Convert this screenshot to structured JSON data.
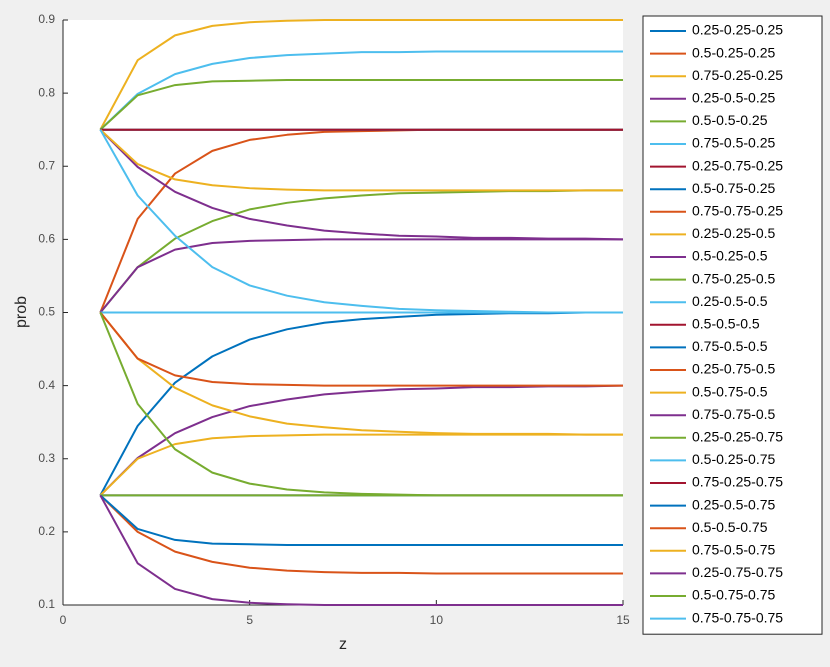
{
  "chart_data": {
    "type": "line",
    "xlabel": "z",
    "ylabel": "prob",
    "x": [
      1,
      2,
      3,
      4,
      5,
      6,
      7,
      8,
      9,
      10,
      11,
      12,
      13,
      14,
      15
    ],
    "xlim": [
      0,
      15
    ],
    "xticks": [
      0,
      5,
      10,
      15
    ],
    "ylim": [
      0.1,
      0.9
    ],
    "yticks": [
      0.1,
      0.2,
      0.3,
      0.4,
      0.5,
      0.6,
      0.7,
      0.8,
      0.9
    ],
    "grid": false,
    "legend": "outside-right",
    "series": [
      {
        "name": "0.25-0.25-0.25",
        "color": "#0072BD",
        "values": [
          0.25,
          0.345,
          0.404,
          0.44,
          0.463,
          0.477,
          0.486,
          0.491,
          0.494,
          0.497,
          0.498,
          0.499,
          0.499,
          0.5,
          0.5
        ]
      },
      {
        "name": "0.5-0.25-0.25",
        "color": "#D95319",
        "values": [
          0.5,
          0.628,
          0.69,
          0.721,
          0.736,
          0.743,
          0.747,
          0.748,
          0.749,
          0.75,
          0.75,
          0.75,
          0.75,
          0.75,
          0.75
        ]
      },
      {
        "name": "0.75-0.25-0.25",
        "color": "#EDB120",
        "values": [
          0.75,
          0.845,
          0.879,
          0.892,
          0.897,
          0.899,
          0.9,
          0.9,
          0.9,
          0.9,
          0.9,
          0.9,
          0.9,
          0.9,
          0.9
        ]
      },
      {
        "name": "0.25-0.5-0.25",
        "color": "#7E2F8E",
        "values": [
          0.25,
          0.301,
          0.335,
          0.357,
          0.372,
          0.381,
          0.388,
          0.392,
          0.395,
          0.396,
          0.398,
          0.398,
          0.399,
          0.399,
          0.4
        ]
      },
      {
        "name": "0.5-0.5-0.25",
        "color": "#77AC30",
        "values": [
          0.5,
          0.562,
          0.601,
          0.625,
          0.641,
          0.65,
          0.656,
          0.66,
          0.663,
          0.664,
          0.665,
          0.666,
          0.666,
          0.667,
          0.667
        ]
      },
      {
        "name": "0.75-0.5-0.25",
        "color": "#4DBEEE",
        "values": [
          0.75,
          0.799,
          0.826,
          0.84,
          0.848,
          0.852,
          0.854,
          0.856,
          0.856,
          0.857,
          0.857,
          0.857,
          0.857,
          0.857,
          0.857
        ]
      },
      {
        "name": "0.25-0.75-0.25",
        "color": "#A2142F",
        "values": [
          0.25,
          0.25,
          0.25,
          0.25,
          0.25,
          0.25,
          0.25,
          0.25,
          0.25,
          0.25,
          0.25,
          0.25,
          0.25,
          0.25,
          0.25
        ]
      },
      {
        "name": "0.5-0.75-0.25",
        "color": "#0072BD",
        "values": [
          0.5,
          0.5,
          0.5,
          0.5,
          0.5,
          0.5,
          0.5,
          0.5,
          0.5,
          0.5,
          0.5,
          0.5,
          0.5,
          0.5,
          0.5
        ]
      },
      {
        "name": "0.75-0.75-0.25",
        "color": "#D95319",
        "values": [
          0.75,
          0.75,
          0.75,
          0.75,
          0.75,
          0.75,
          0.75,
          0.75,
          0.75,
          0.75,
          0.75,
          0.75,
          0.75,
          0.75,
          0.75
        ]
      },
      {
        "name": "0.25-0.25-0.5",
        "color": "#EDB120",
        "values": [
          0.25,
          0.3,
          0.32,
          0.328,
          0.331,
          0.332,
          0.333,
          0.333,
          0.333,
          0.333,
          0.333,
          0.333,
          0.333,
          0.333,
          0.333
        ]
      },
      {
        "name": "0.5-0.25-0.5",
        "color": "#7E2F8E",
        "values": [
          0.5,
          0.562,
          0.586,
          0.595,
          0.598,
          0.599,
          0.6,
          0.6,
          0.6,
          0.6,
          0.6,
          0.6,
          0.6,
          0.6,
          0.6
        ]
      },
      {
        "name": "0.75-0.25-0.5",
        "color": "#77AC30",
        "values": [
          0.75,
          0.797,
          0.811,
          0.816,
          0.817,
          0.818,
          0.818,
          0.818,
          0.818,
          0.818,
          0.818,
          0.818,
          0.818,
          0.818,
          0.818
        ]
      },
      {
        "name": "0.25-0.5-0.5",
        "color": "#4DBEEE",
        "values": [
          0.25,
          0.25,
          0.25,
          0.25,
          0.25,
          0.25,
          0.25,
          0.25,
          0.25,
          0.25,
          0.25,
          0.25,
          0.25,
          0.25,
          0.25
        ]
      },
      {
        "name": "0.5-0.5-0.5",
        "color": "#A2142F",
        "values": [
          0.5,
          0.5,
          0.5,
          0.5,
          0.5,
          0.5,
          0.5,
          0.5,
          0.5,
          0.5,
          0.5,
          0.5,
          0.5,
          0.5,
          0.5
        ]
      },
      {
        "name": "0.75-0.5-0.5",
        "color": "#0072BD",
        "values": [
          0.75,
          0.75,
          0.75,
          0.75,
          0.75,
          0.75,
          0.75,
          0.75,
          0.75,
          0.75,
          0.75,
          0.75,
          0.75,
          0.75,
          0.75
        ]
      },
      {
        "name": "0.25-0.75-0.5",
        "color": "#D95319",
        "values": [
          0.25,
          0.2,
          0.173,
          0.159,
          0.151,
          0.147,
          0.145,
          0.144,
          0.144,
          0.143,
          0.143,
          0.143,
          0.143,
          0.143,
          0.143
        ]
      },
      {
        "name": "0.5-0.75-0.5",
        "color": "#EDB120",
        "values": [
          0.5,
          0.437,
          0.397,
          0.373,
          0.358,
          0.348,
          0.343,
          0.339,
          0.337,
          0.335,
          0.334,
          0.334,
          0.334,
          0.333,
          0.333
        ]
      },
      {
        "name": "0.75-0.75-0.5",
        "color": "#7E2F8E",
        "values": [
          0.75,
          0.699,
          0.665,
          0.643,
          0.628,
          0.619,
          0.612,
          0.608,
          0.605,
          0.604,
          0.602,
          0.602,
          0.601,
          0.601,
          0.6
        ]
      },
      {
        "name": "0.25-0.25-0.75",
        "color": "#77AC30",
        "values": [
          0.25,
          0.25,
          0.25,
          0.25,
          0.25,
          0.25,
          0.25,
          0.25,
          0.25,
          0.25,
          0.25,
          0.25,
          0.25,
          0.25,
          0.25
        ]
      },
      {
        "name": "0.5-0.25-0.75",
        "color": "#4DBEEE",
        "values": [
          0.5,
          0.5,
          0.5,
          0.5,
          0.5,
          0.5,
          0.5,
          0.5,
          0.5,
          0.5,
          0.5,
          0.5,
          0.5,
          0.5,
          0.5
        ]
      },
      {
        "name": "0.75-0.25-0.75",
        "color": "#A2142F",
        "values": [
          0.75,
          0.75,
          0.75,
          0.75,
          0.75,
          0.75,
          0.75,
          0.75,
          0.75,
          0.75,
          0.75,
          0.75,
          0.75,
          0.75,
          0.75
        ]
      },
      {
        "name": "0.25-0.5-0.75",
        "color": "#0072BD",
        "values": [
          0.25,
          0.204,
          0.189,
          0.184,
          0.183,
          0.182,
          0.182,
          0.182,
          0.182,
          0.182,
          0.182,
          0.182,
          0.182,
          0.182,
          0.182
        ]
      },
      {
        "name": "0.5-0.5-0.75",
        "color": "#D95319",
        "values": [
          0.5,
          0.437,
          0.414,
          0.405,
          0.402,
          0.401,
          0.4,
          0.4,
          0.4,
          0.4,
          0.4,
          0.4,
          0.4,
          0.4,
          0.4
        ]
      },
      {
        "name": "0.75-0.5-0.75",
        "color": "#EDB120",
        "values": [
          0.75,
          0.703,
          0.682,
          0.674,
          0.67,
          0.668,
          0.667,
          0.667,
          0.667,
          0.667,
          0.667,
          0.667,
          0.667,
          0.667,
          0.667
        ]
      },
      {
        "name": "0.25-0.75-0.75",
        "color": "#7E2F8E",
        "values": [
          0.25,
          0.157,
          0.122,
          0.108,
          0.103,
          0.101,
          0.1,
          0.1,
          0.1,
          0.1,
          0.1,
          0.1,
          0.1,
          0.1,
          0.1
        ]
      },
      {
        "name": "0.5-0.75-0.75",
        "color": "#77AC30",
        "values": [
          0.5,
          0.375,
          0.313,
          0.281,
          0.266,
          0.258,
          0.254,
          0.252,
          0.251,
          0.25,
          0.25,
          0.25,
          0.25,
          0.25,
          0.25
        ]
      },
      {
        "name": "0.75-0.75-0.75",
        "color": "#4DBEEE",
        "values": [
          0.75,
          0.66,
          0.605,
          0.562,
          0.537,
          0.523,
          0.514,
          0.509,
          0.505,
          0.503,
          0.502,
          0.501,
          0.5,
          0.5,
          0.5
        ]
      }
    ]
  }
}
